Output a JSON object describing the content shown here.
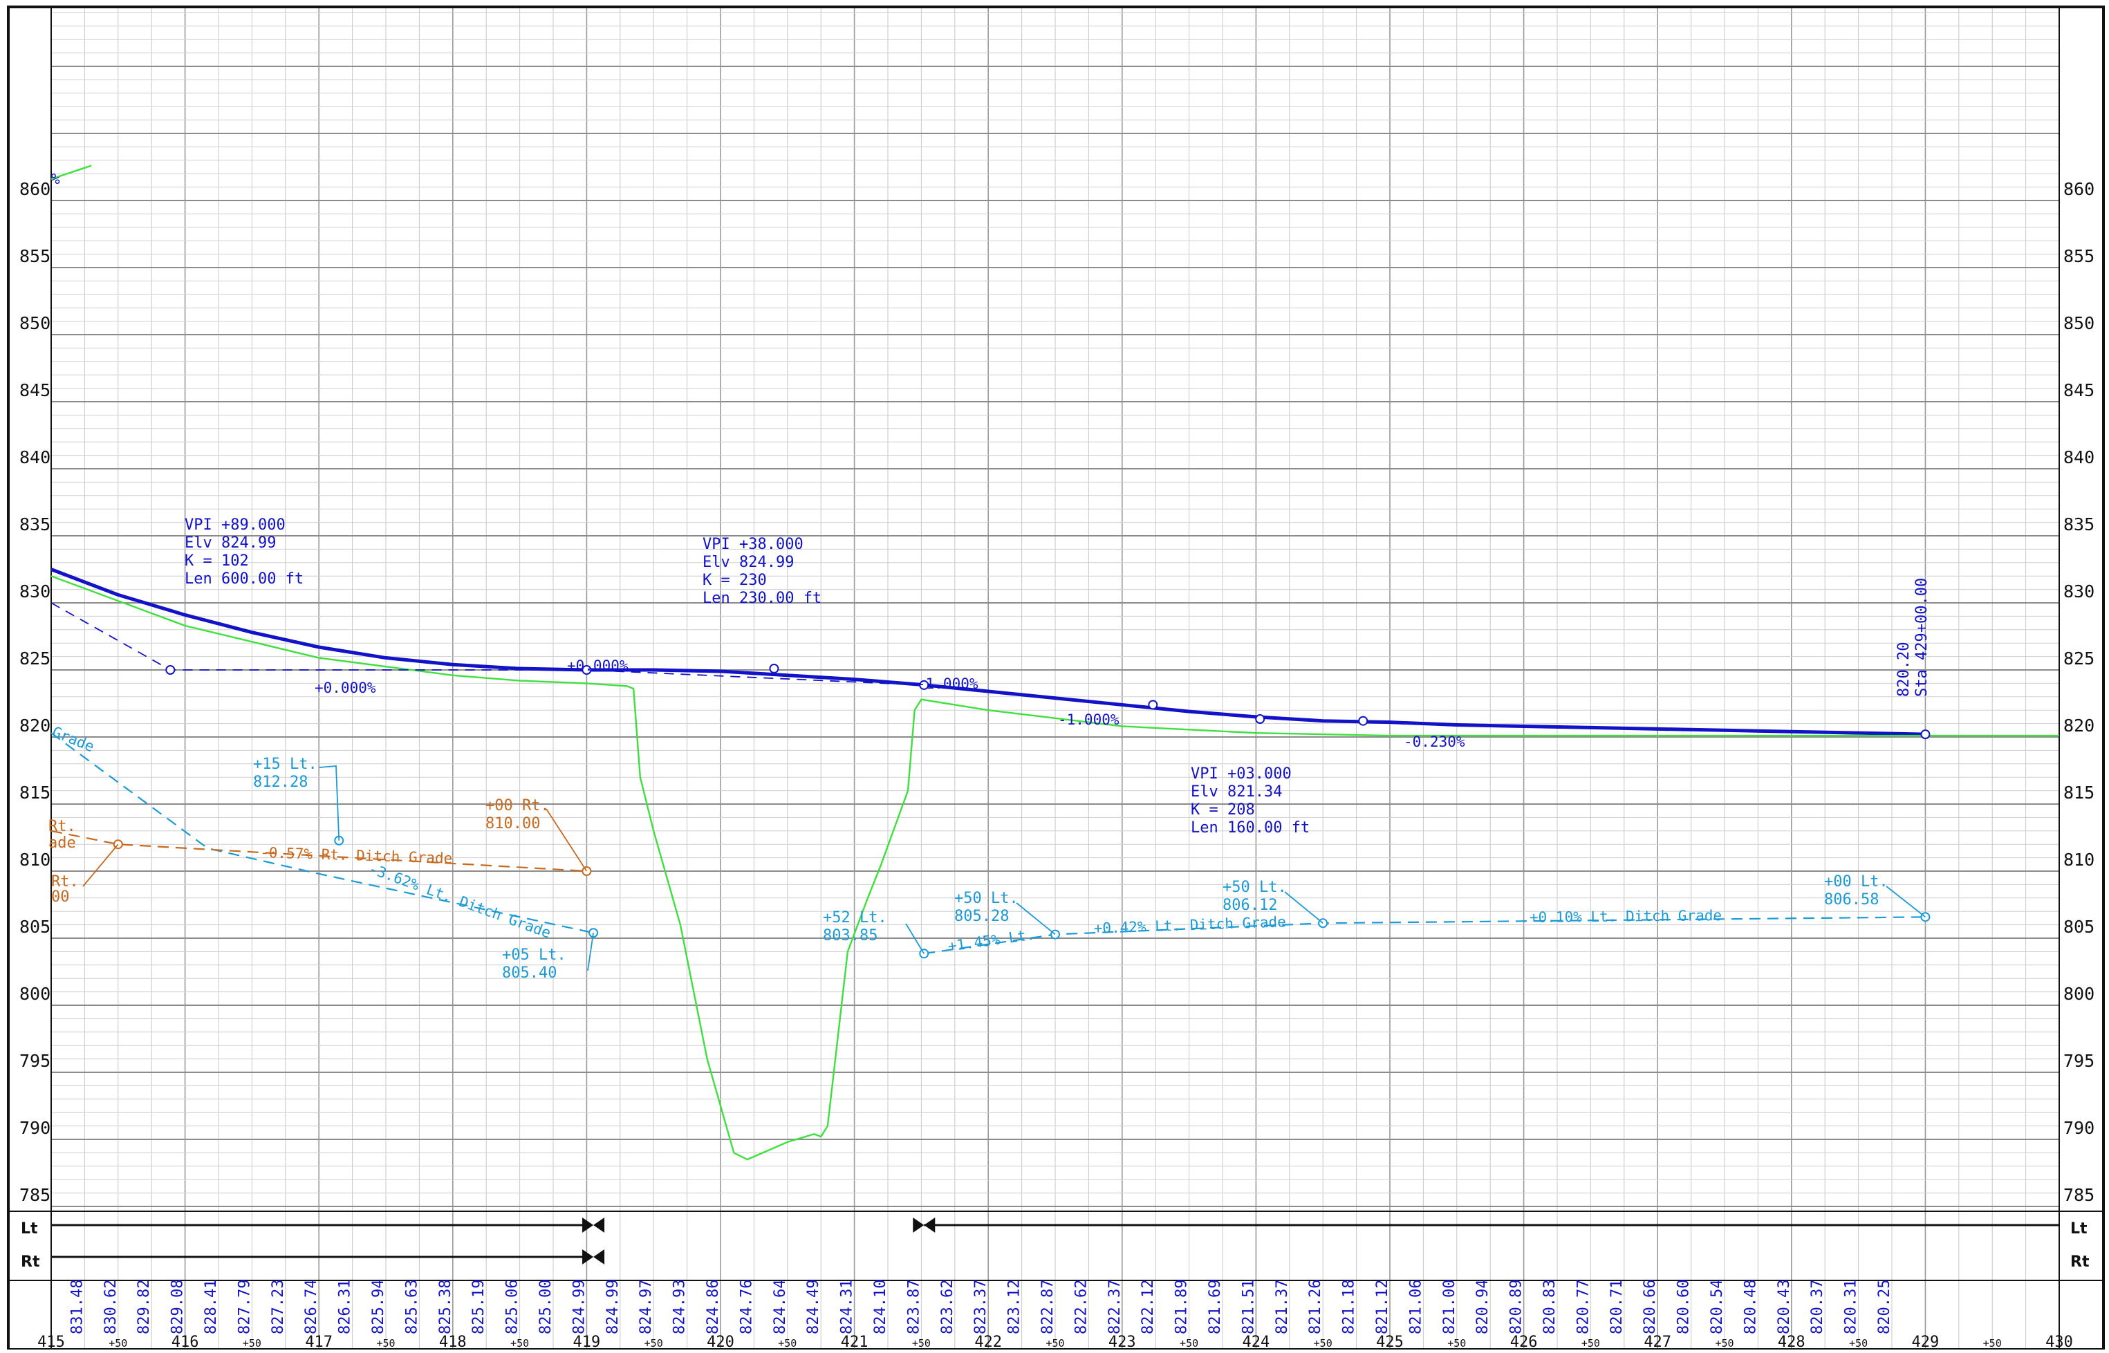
{
  "chart_data": {
    "type": "line",
    "title": "",
    "xlabel": "",
    "ylabel": "",
    "xlim": [
      415,
      430
    ],
    "ylim": [
      785,
      870
    ],
    "x_ticks": [
      "415",
      "416",
      "417",
      "418",
      "419",
      "420",
      "421",
      "422",
      "423",
      "424",
      "425",
      "426",
      "427",
      "428",
      "429",
      "430"
    ],
    "x_minor_label": "+50",
    "y_ticks": [
      "785",
      "790",
      "795",
      "800",
      "805",
      "810",
      "815",
      "820",
      "825",
      "830",
      "835",
      "840",
      "845",
      "850",
      "855",
      "860"
    ],
    "station_elevations": [
      "831.48",
      "830.62",
      "829.82",
      "829.08",
      "828.41",
      "827.79",
      "827.23",
      "826.74",
      "826.31",
      "825.94",
      "825.63",
      "825.38",
      "825.19",
      "825.06",
      "825.00",
      "824.99",
      "824.99",
      "824.97",
      "824.93",
      "824.86",
      "824.76",
      "824.64",
      "824.49",
      "824.31",
      "824.10",
      "823.87",
      "823.62",
      "823.37",
      "823.12",
      "822.87",
      "822.62",
      "822.37",
      "822.12",
      "821.89",
      "821.69",
      "821.51",
      "821.37",
      "821.26",
      "821.18",
      "821.12",
      "821.06",
      "821.00",
      "820.94",
      "820.89",
      "820.83",
      "820.77",
      "820.71",
      "820.66",
      "820.60",
      "820.54",
      "820.48",
      "820.43",
      "820.37",
      "820.31",
      "820.25"
    ],
    "series": [
      {
        "color": "#1212c8",
        "style": "thick",
        "x": [
          415.0,
          415.5,
          416.0,
          416.5,
          417.0,
          417.5,
          418.0,
          418.5,
          419.0,
          419.5,
          420.0,
          420.5,
          421.0,
          421.5,
          422.0,
          422.5,
          423.0,
          423.5,
          424.0,
          424.5,
          425.0,
          425.5,
          426.0,
          426.5,
          427.0,
          427.5,
          428.0,
          428.5,
          429.0
        ],
        "y": [
          832.5,
          830.6,
          829.1,
          827.8,
          826.7,
          825.9,
          825.4,
          825.1,
          825.0,
          825.0,
          824.9,
          824.6,
          824.3,
          823.9,
          823.4,
          822.9,
          822.4,
          821.9,
          821.5,
          821.2,
          821.1,
          820.9,
          820.8,
          820.7,
          820.6,
          820.5,
          820.4,
          820.3,
          820.2
        ]
      },
      {
        "color": "#3ee03e",
        "style": "thin",
        "x": [
          415.0,
          416.0,
          417.0,
          418.0,
          418.5,
          419.0,
          419.3,
          419.35,
          419.4,
          419.5,
          419.7,
          419.9,
          420.1,
          420.2,
          420.5,
          420.7,
          420.75,
          420.8,
          420.95,
          421.1,
          421.2,
          421.4,
          421.45,
          421.5,
          422.0,
          423.0,
          424.0,
          425.0,
          426.0,
          427.0,
          428.0,
          429.0,
          430.0
        ],
        "y": [
          832.0,
          828.3,
          825.9,
          824.6,
          824.2,
          824.0,
          823.8,
          823.6,
          817.0,
          813.0,
          806.0,
          796.0,
          789.0,
          788.5,
          789.8,
          790.4,
          790.2,
          791.0,
          804.0,
          808.0,
          810.5,
          816.0,
          822.0,
          822.8,
          822.0,
          820.8,
          820.3,
          820.1,
          820.1,
          820.1,
          820.1,
          820.1,
          820.1
        ]
      },
      {
        "color": "#1a9bd8",
        "style": "dashed",
        "x": [
          415.0,
          416.17,
          417.0,
          419.05
        ],
        "y": [
          820.3,
          811.7,
          809.8,
          805.4
        ]
      },
      {
        "color": "#1a9bd8",
        "style": "dashed",
        "x": [
          421.52,
          422.5,
          424.5,
          429.0
        ],
        "y": [
          803.85,
          805.28,
          806.12,
          806.58
        ]
      },
      {
        "color": "#c8691e",
        "style": "dashed",
        "x": [
          415.0,
          415.5,
          419.0
        ],
        "y": [
          813.0,
          812.0,
          810.0
        ]
      },
      {
        "color": "#1212c8",
        "style": "dashed-thin",
        "x": [
          415.0,
          415.89,
          419.0,
          421.52
        ],
        "y": [
          830.0,
          825.0,
          825.0,
          823.87
        ]
      }
    ],
    "annotations": {
      "vpi1": [
        "VPI +89.000",
        "Elv 824.99",
        "K = 102",
        "Len 600.00 ft"
      ],
      "vpi2": [
        "VPI +38.000",
        "Elv 824.99",
        "K = 230",
        "Len 230.00 ft"
      ],
      "vpi3": [
        "VPI +03.000",
        "Elv 821.34",
        "K = 208",
        "Len 160.00 ft"
      ],
      "sta_end": [
        "820.20",
        "Sta 429+00.00"
      ],
      "grades": [
        "+0.000%",
        "+0.000%",
        "-1.000%",
        "-1.000%",
        "-0.230%"
      ],
      "top_left_fragment": "%",
      "ditch_cyan": {
        "p15": [
          "+15 Lt.",
          "812.28"
        ],
        "p05": [
          "+05 Lt.",
          "805.40"
        ],
        "p52": [
          "+52 Lt.",
          "803.85"
        ],
        "p50a": [
          "+50 Lt.",
          "805.28"
        ],
        "p50b": [
          "+50 Lt.",
          "806.12"
        ],
        "p00": [
          "+00 Lt.",
          "806.58"
        ],
        "grade_left": "-3.62% Lt. Ditch Grade",
        "grade_145": "+1.45% Lt.",
        "grade_042": "+0.42% Lt. Ditch Grade",
        "grade_010": "+0.10% Lt. Ditch Grade",
        "grade_top": "Grade"
      },
      "ditch_orange": {
        "p00": [
          "+00 Rt.",
          "810.00"
        ],
        "grade": "-0.57% Rt. Ditch Grade",
        "frag_rt1": "Rt.",
        "frag_ade": "ade",
        "frag_rt2": "Rt.",
        "frag_00": "00"
      },
      "lane_labels": [
        "Lt",
        "Rt"
      ]
    }
  }
}
